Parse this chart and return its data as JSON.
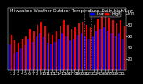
{
  "title": "Milwaukee Weather Outdoor Temperature  Daily High/Low",
  "background_color": "#000000",
  "plot_bg_color": "#000000",
  "high_color": "#ff0000",
  "low_color": "#0000ee",
  "ylim": [
    0,
    110
  ],
  "ytick_values": [
    20,
    40,
    60,
    80,
    100
  ],
  "days": [
    "1",
    "2",
    "3",
    "4",
    "5",
    "6",
    "7",
    "8",
    "9",
    "10",
    "11",
    "12",
    "13",
    "14",
    "15",
    "16",
    "17",
    "18",
    "19",
    "20",
    "21",
    "22",
    "23",
    "24",
    "25",
    "26",
    "27",
    "28",
    "29",
    "30",
    "31"
  ],
  "highs": [
    62,
    52,
    48,
    55,
    60,
    72,
    68,
    80,
    85,
    78,
    65,
    62,
    68,
    78,
    88,
    80,
    72,
    75,
    82,
    85,
    80,
    75,
    80,
    90,
    95,
    98,
    92,
    88,
    82,
    88,
    78
  ],
  "lows": [
    45,
    30,
    32,
    38,
    44,
    55,
    50,
    60,
    65,
    58,
    48,
    45,
    50,
    55,
    65,
    60,
    52,
    55,
    62,
    65,
    60,
    55,
    60,
    68,
    72,
    75,
    70,
    65,
    60,
    65,
    55
  ],
  "vline_positions": [
    19.5,
    21.5
  ],
  "legend_high_label": "High",
  "legend_low_label": "Low",
  "font_size": 3.5,
  "title_font_size": 3.8,
  "bar_width": 0.4
}
